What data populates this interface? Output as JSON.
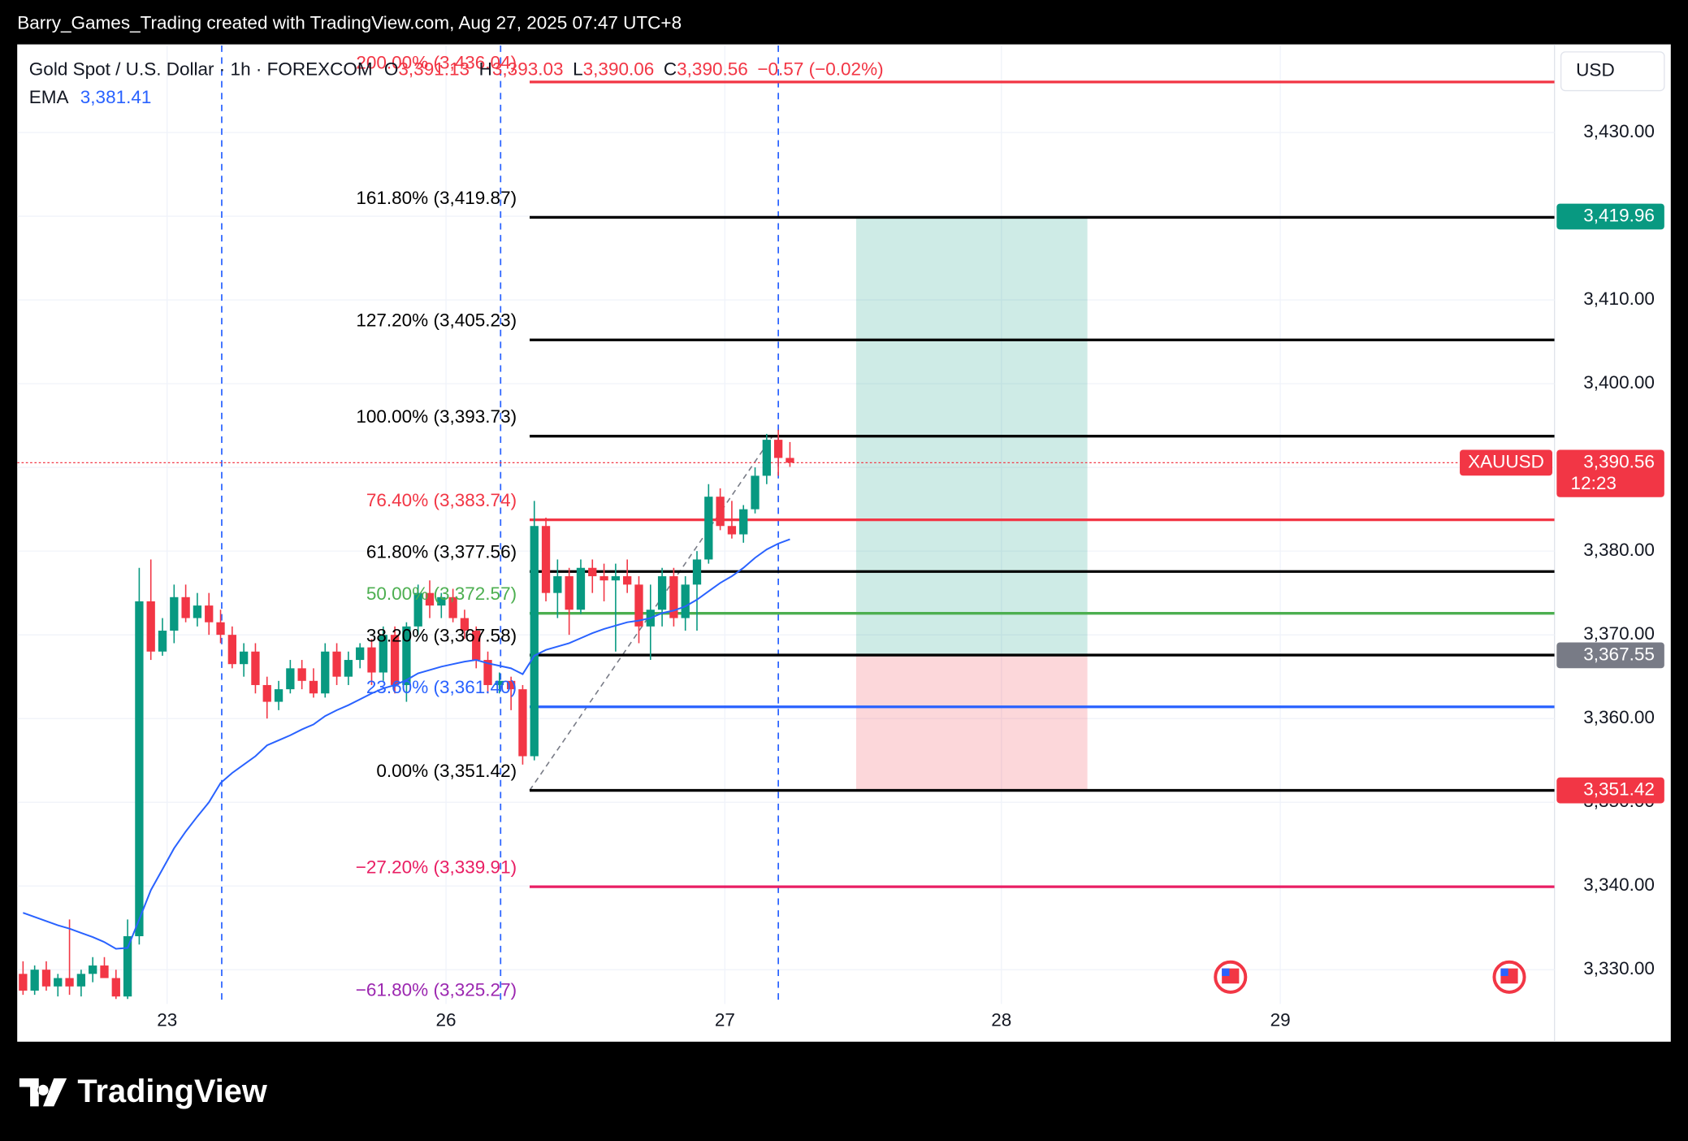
{
  "header": {
    "attribution": "Barry_Games_Trading created with TradingView.com, Aug 27, 2025 07:47 UTC+8"
  },
  "chart_data": {
    "type": "candlestick",
    "title": "Gold Spot / U.S. Dollar · 1h · FOREXCOM",
    "ohlc_labels": [
      {
        "key": "O",
        "text": "3,391.13"
      },
      {
        "key": "H",
        "text": "3,393.03"
      },
      {
        "key": "L",
        "text": "3,390.06"
      },
      {
        "key": "C",
        "text": "3,390.56"
      }
    ],
    "change": "−0.57 (−0.02%)",
    "currency": "USD",
    "up_color": "#089981",
    "down_color": "#f23645",
    "x": [
      0.5,
      1.5,
      2.5,
      3.5,
      4.5,
      5.5,
      6.5,
      7.5,
      8.5,
      9.5,
      10.5,
      11.5,
      12.5,
      13.5,
      14.5,
      15.5,
      16.5,
      17.5,
      18.5,
      19.5,
      20.5,
      21.5,
      22.5,
      23.5,
      24.5,
      25.5,
      26.5,
      27.5,
      28.5,
      29.5,
      30.5,
      31.5,
      32.5,
      33.5,
      34.5,
      35.5,
      36.5,
      37.5,
      38.5,
      39.5,
      40.5,
      41.5,
      42.5,
      43.5,
      44.5,
      45.5,
      46.5,
      47.5,
      48.5,
      49.5,
      50.5,
      51.5,
      52.5,
      53.5,
      54.5,
      55.5,
      56.5,
      57.5,
      58.5,
      59.5,
      60.5,
      61.5,
      62.5,
      63.5,
      64.5,
      65.5,
      66.5
    ],
    "open": [
      3329.5,
      3327.5,
      3330,
      3328,
      3329,
      3328,
      3329.5,
      3330.5,
      3329,
      3326.8,
      3334,
      3374,
      3368,
      3370.5,
      3374.5,
      3372,
      3373.5,
      3371.5,
      3370,
      3366.5,
      3368,
      3364,
      3362,
      3363.5,
      3366,
      3364.5,
      3363,
      3368,
      3365,
      3367,
      3368.5,
      3365.5,
      3370,
      3364,
      3371,
      3375,
      3373.5,
      3374.5,
      3372,
      3370.5,
      3367,
      3364,
      3364.5,
      3363.5,
      3355.5,
      3383,
      3375,
      3377,
      3373,
      3378,
      3377,
      3376.5,
      3377,
      3376,
      3371,
      3373,
      3377,
      3372,
      3376,
      3379,
      3386.5,
      3383,
      3382,
      3385,
      3389,
      3393.3,
      3391.13
    ],
    "high": [
      3331,
      3330.5,
      3331,
      3329.5,
      3336,
      3330,
      3331.5,
      3331.5,
      3330,
      3336,
      3378,
      3379,
      3372,
      3376,
      3376,
      3375,
      3375,
      3373,
      3371,
      3369,
      3369,
      3365,
      3364.5,
      3367,
      3367,
      3366,
      3369,
      3369,
      3368,
      3369,
      3369.5,
      3371,
      3371,
      3371.5,
      3376,
      3376.5,
      3375,
      3375.5,
      3373,
      3371,
      3368,
      3365.5,
      3365,
      3364,
      3386,
      3384,
      3379,
      3378,
      3379,
      3379,
      3378.5,
      3378.5,
      3379,
      3377,
      3376,
      3378,
      3378,
      3377,
      3380,
      3388,
      3387.5,
      3386,
      3385.5,
      3390,
      3394,
      3394.5,
      3393.03
    ],
    "low": [
      3327,
      3327,
      3327.5,
      3326.8,
      3327,
      3326.8,
      3328.5,
      3329,
      3326.5,
      3326.5,
      3333,
      3367,
      3367.5,
      3369,
      3371.5,
      3371,
      3370,
      3369,
      3366,
      3365,
      3363,
      3360,
      3361,
      3363,
      3363.5,
      3362.5,
      3362.5,
      3364,
      3364,
      3366,
      3364,
      3364.5,
      3363,
      3362,
      3370,
      3372,
      3372,
      3371.5,
      3369.5,
      3366,
      3363,
      3363,
      3361,
      3354.5,
      3355,
      3374,
      3372,
      3370,
      3372.5,
      3375,
      3374,
      3368,
      3375,
      3369,
      3367,
      3371,
      3371,
      3370.5,
      3370.5,
      3378.5,
      3382.5,
      3381.5,
      3381,
      3384.5,
      3388,
      3389,
      3390.06
    ],
    "close": [
      3327.5,
      3330,
      3328,
      3329,
      3328,
      3329.5,
      3330.5,
      3329,
      3326.8,
      3334,
      3374,
      3368,
      3370.5,
      3374.5,
      3372,
      3373.5,
      3371.5,
      3370,
      3366.5,
      3368,
      3364,
      3362,
      3363.5,
      3366,
      3364.5,
      3363,
      3368,
      3365,
      3367,
      3368.5,
      3365.5,
      3370,
      3364,
      3371,
      3375,
      3373.5,
      3374.5,
      3372,
      3370.5,
      3367,
      3364,
      3364.5,
      3363.5,
      3355.5,
      3383,
      3375,
      3377,
      3373,
      3378,
      3377,
      3376.5,
      3377,
      3376,
      3371,
      3373,
      3377,
      3372,
      3376,
      3379,
      3386.5,
      3383,
      3382,
      3385,
      3389,
      3393.3,
      3391.13,
      3390.56
    ],
    "series": [
      {
        "name": "EMA",
        "value_label": "3,381.41",
        "color": "#2962ff",
        "values": [
          3336.8,
          3336.3,
          3335.8,
          3335.3,
          3334.9,
          3334.4,
          3333.9,
          3333.3,
          3332.5,
          3332.6,
          3336,
          3339.5,
          3342,
          3344.5,
          3346.5,
          3348.3,
          3350,
          3352.3,
          3353.5,
          3354.5,
          3355.5,
          3356.8,
          3357.4,
          3358,
          3358.7,
          3359.3,
          3360.3,
          3361,
          3361.6,
          3362.3,
          3363,
          3363.6,
          3364,
          3364.6,
          3365.4,
          3365.8,
          3366.2,
          3366.5,
          3366.8,
          3367,
          3366.6,
          3366.3,
          3366,
          3365.3,
          3367.5,
          3368.2,
          3368.6,
          3369,
          3369.6,
          3370.2,
          3370.7,
          3371.1,
          3371.5,
          3371.7,
          3372,
          3372.6,
          3372.9,
          3373.4,
          3374.2,
          3375.2,
          3376.2,
          3377,
          3378,
          3379.2,
          3380.2,
          3380.9,
          3381.41
        ]
      }
    ],
    "xlim": [
      0,
      132.3
    ],
    "xticks": [
      {
        "value": 12.9,
        "label": "23"
      },
      {
        "value": 36.9,
        "label": "26"
      },
      {
        "value": 60.9,
        "label": "27"
      },
      {
        "value": 84.7,
        "label": "28"
      },
      {
        "value": 108.7,
        "label": "29"
      }
    ],
    "ylim": [
      3321.4,
      3440.4
    ],
    "yticks": [
      {
        "value": 3330,
        "label": "3,330.00"
      },
      {
        "value": 3340,
        "label": "3,340.00"
      },
      {
        "value": 3350,
        "label": "3,350.00"
      },
      {
        "value": 3360,
        "label": "3,360.00"
      },
      {
        "value": 3370,
        "label": "3,370.00"
      },
      {
        "value": 3380,
        "label": "3,380.00"
      },
      {
        "value": 3390,
        "label": "3,390.00"
      },
      {
        "value": 3400,
        "label": "3,400.00"
      },
      {
        "value": 3410,
        "label": "3,410.00"
      },
      {
        "value": 3420,
        "label": "3,420.00"
      },
      {
        "value": 3430,
        "label": "3,430.00"
      }
    ],
    "grid": true,
    "session_breaks": [
      17.6,
      41.6,
      65.5
    ],
    "fib": {
      "anchor_x": [
        44.1,
        65.0
      ],
      "anchor_y": [
        3351.42,
        3393.73
      ],
      "levels": [
        {
          "label": "200.00% (3,436.04)",
          "value": 3436.04,
          "color": "#f23645"
        },
        {
          "label": "161.80% (3,419.87)",
          "value": 3419.87,
          "color": "#000000"
        },
        {
          "label": "127.20% (3,405.23)",
          "value": 3405.23,
          "color": "#000000"
        },
        {
          "label": "100.00% (3,393.73)",
          "value": 3393.73,
          "color": "#000000"
        },
        {
          "label": "76.40% (3,383.74)",
          "value": 3383.74,
          "color": "#f23645"
        },
        {
          "label": "61.80% (3,377.56)",
          "value": 3377.56,
          "color": "#000000"
        },
        {
          "label": "50.00% (3,372.57)",
          "value": 3372.57,
          "color": "#4caf50"
        },
        {
          "label": "38.20% (3,367.58)",
          "value": 3367.58,
          "color": "#000000"
        },
        {
          "label": "23.60% (3,361.40)",
          "value": 3361.4,
          "color": "#2962ff"
        },
        {
          "label": "0.00% (3,351.42)",
          "value": 3351.42,
          "color": "#000000"
        },
        {
          "label": "−27.20% (3,339.91)",
          "value": 3339.91,
          "color": "#e91e63"
        },
        {
          "label": "−61.80% (3,325.27)",
          "value": 3325.27,
          "color": "#9c27b0"
        }
      ]
    },
    "position": {
      "x": [
        72.2,
        92.1
      ],
      "target": 3419.96,
      "entry": 3367.55,
      "stop": 3351.42
    },
    "price_labels": [
      {
        "text": "3,419.96",
        "value": 3419.96,
        "color": "#089981"
      },
      {
        "text": "3,367.55",
        "value": 3367.55,
        "color": "#787b86"
      },
      {
        "text": "3,351.42",
        "value": 3351.42,
        "color": "#f23645"
      }
    ],
    "last_price": {
      "symbol": "XAUUSD",
      "text": "3,390.56",
      "countdown": "12:23",
      "value": 3390.56,
      "color": "#f23645"
    }
  },
  "footer": {
    "logo": "TradingView"
  }
}
